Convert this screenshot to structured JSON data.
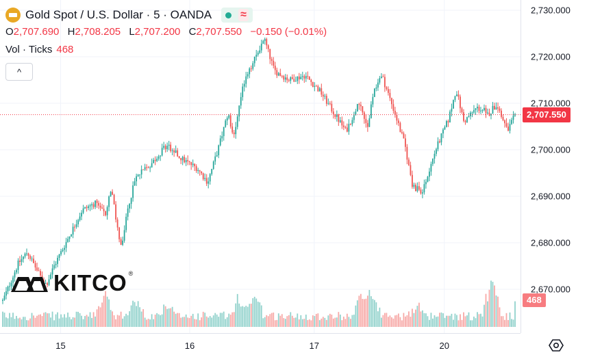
{
  "symbol": {
    "title": "Gold Spot / U.S. Dollar · 5 · OANDA",
    "status_icon": "market-open-dot",
    "wave_icon": "≈"
  },
  "ohlc": {
    "o_label": "O",
    "o": "2,707.690",
    "h_label": "H",
    "h": "2,708.205",
    "l_label": "L",
    "l": "2,707.200",
    "c_label": "C",
    "c": "2,707.550",
    "change": "−0.150 (−0.01%)"
  },
  "volume_legend": {
    "label": "Vol · Ticks",
    "value": "468"
  },
  "collapse_icon": "^",
  "watermark": "KITCO",
  "price_axis": {
    "ticks": [
      "2,730.000",
      "2,720.000",
      "2,710.000",
      "2,700.000",
      "2,690.000",
      "2,680.000",
      "2,670.000"
    ],
    "last_price": "2,707.550",
    "last_volume": "468"
  },
  "time_axis": {
    "ticks": [
      "15",
      "16",
      "17",
      "20"
    ]
  },
  "colors": {
    "up": "#26a69a",
    "down": "#ef5350",
    "price_line": "#f23645"
  },
  "chart_data": {
    "type": "candlestick",
    "y_axis_ticks": [
      2730,
      2720,
      2710,
      2700,
      2690,
      2680,
      2670
    ],
    "ylim": [
      2665,
      2731
    ],
    "x_tick_labels": [
      "15",
      "16",
      "17",
      "20"
    ],
    "last_price": 2707.55,
    "price_path": [
      {
        "t": 0.0,
        "p": 2667.5
      },
      {
        "t": 0.03,
        "p": 2675.5
      },
      {
        "t": 0.048,
        "p": 2678.0
      },
      {
        "t": 0.072,
        "p": 2673.0
      },
      {
        "t": 0.085,
        "p": 2671.0
      },
      {
        "t": 0.1,
        "p": 2675.0
      },
      {
        "t": 0.13,
        "p": 2681.5
      },
      {
        "t": 0.155,
        "p": 2687.0
      },
      {
        "t": 0.18,
        "p": 2688.5
      },
      {
        "t": 0.2,
        "p": 2686.0
      },
      {
        "t": 0.212,
        "p": 2692.0
      },
      {
        "t": 0.222,
        "p": 2684.0
      },
      {
        "t": 0.232,
        "p": 2678.5
      },
      {
        "t": 0.245,
        "p": 2688.0
      },
      {
        "t": 0.26,
        "p": 2694.0
      },
      {
        "t": 0.29,
        "p": 2697.0
      },
      {
        "t": 0.32,
        "p": 2701.0
      },
      {
        "t": 0.35,
        "p": 2698.0
      },
      {
        "t": 0.38,
        "p": 2696.0
      },
      {
        "t": 0.4,
        "p": 2693.0
      },
      {
        "t": 0.42,
        "p": 2700.0
      },
      {
        "t": 0.44,
        "p": 2708.0
      },
      {
        "t": 0.45,
        "p": 2702.0
      },
      {
        "t": 0.47,
        "p": 2714.0
      },
      {
        "t": 0.49,
        "p": 2719.0
      },
      {
        "t": 0.51,
        "p": 2724.0
      },
      {
        "t": 0.53,
        "p": 2717.0
      },
      {
        "t": 0.56,
        "p": 2715.0
      },
      {
        "t": 0.59,
        "p": 2716.0
      },
      {
        "t": 0.62,
        "p": 2712.5
      },
      {
        "t": 0.64,
        "p": 2709.0
      },
      {
        "t": 0.67,
        "p": 2704.0
      },
      {
        "t": 0.695,
        "p": 2710.0
      },
      {
        "t": 0.712,
        "p": 2704.5
      },
      {
        "t": 0.725,
        "p": 2713.0
      },
      {
        "t": 0.74,
        "p": 2716.0
      },
      {
        "t": 0.765,
        "p": 2708.0
      },
      {
        "t": 0.785,
        "p": 2701.0
      },
      {
        "t": 0.8,
        "p": 2692.0
      },
      {
        "t": 0.82,
        "p": 2691.0
      },
      {
        "t": 0.845,
        "p": 2700.0
      },
      {
        "t": 0.87,
        "p": 2706.5
      },
      {
        "t": 0.885,
        "p": 2713.0
      },
      {
        "t": 0.9,
        "p": 2706.0
      },
      {
        "t": 0.925,
        "p": 2709.0
      },
      {
        "t": 0.95,
        "p": 2708.0
      },
      {
        "t": 0.965,
        "p": 2710.0
      },
      {
        "t": 0.985,
        "p": 2704.0
      },
      {
        "t": 1.0,
        "p": 2707.55
      }
    ],
    "volume_spikes": [
      {
        "t": 0.2,
        "v": 640
      },
      {
        "t": 0.26,
        "v": 520
      },
      {
        "t": 0.32,
        "v": 460
      },
      {
        "t": 0.46,
        "v": 560
      },
      {
        "t": 0.49,
        "v": 700
      },
      {
        "t": 0.7,
        "v": 620
      },
      {
        "t": 0.72,
        "v": 680
      },
      {
        "t": 0.81,
        "v": 460
      },
      {
        "t": 0.955,
        "v": 1150
      }
    ]
  }
}
